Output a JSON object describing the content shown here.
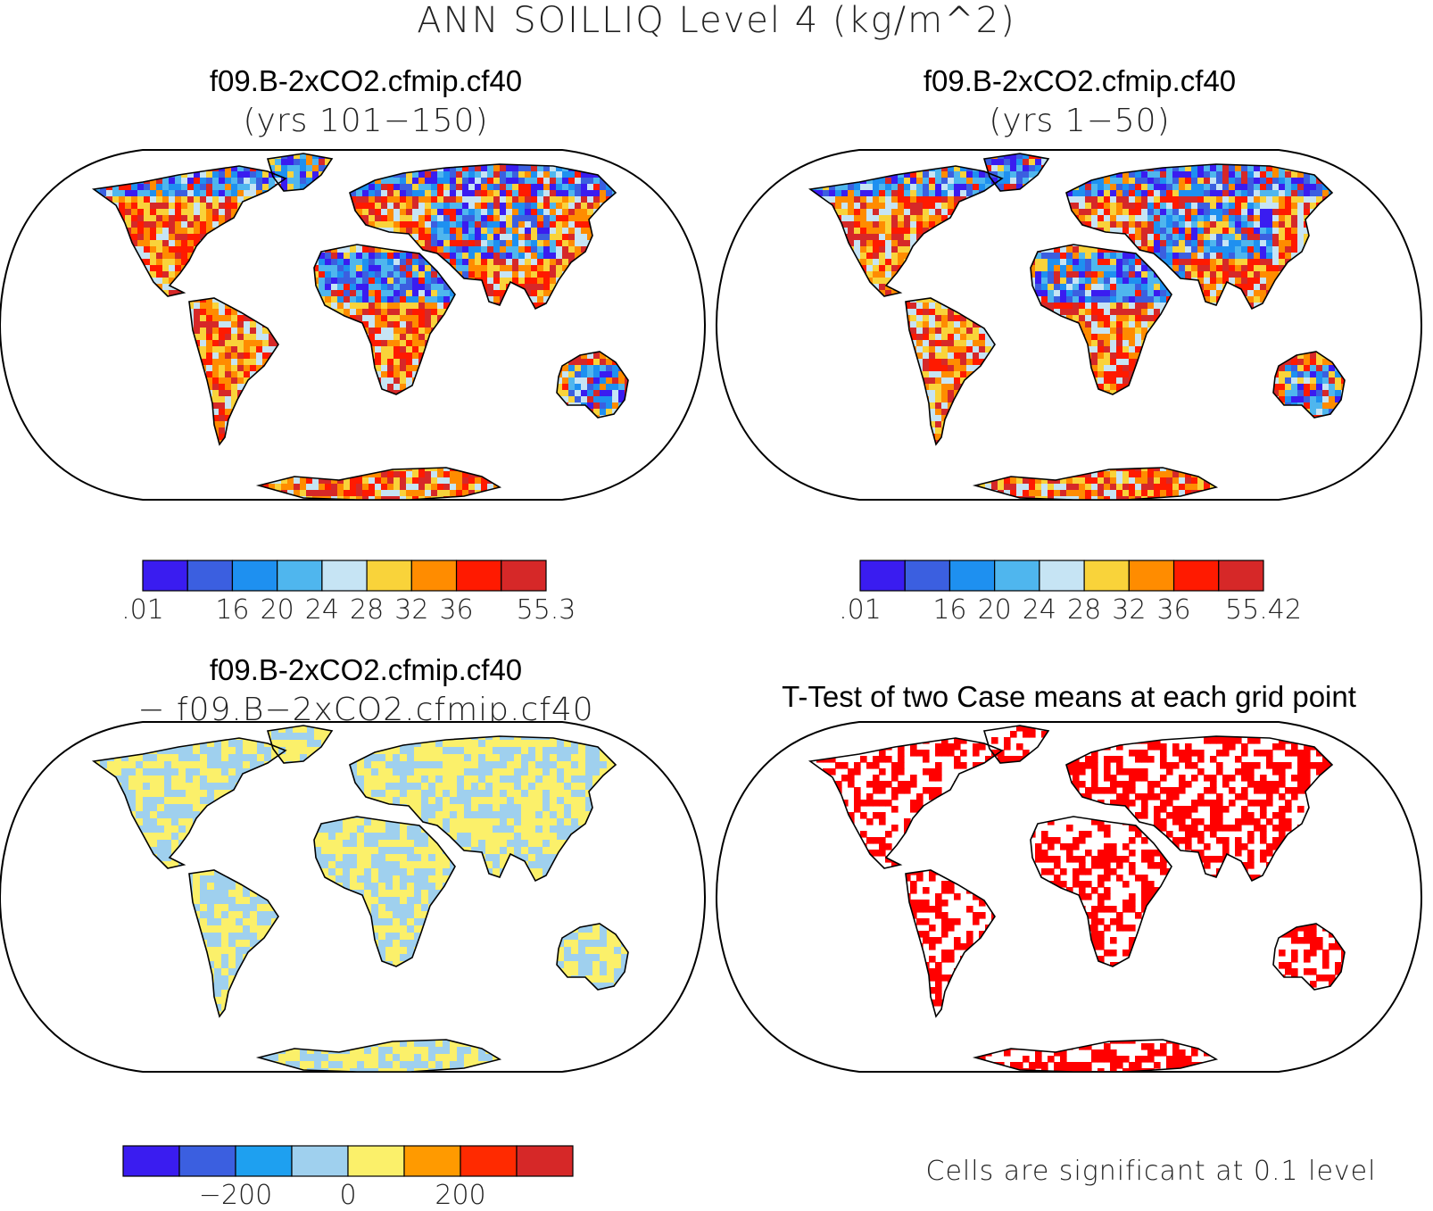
{
  "title": "ANN SOILLIQ Level 4 (kg/m^2)",
  "panels": [
    {
      "id": "case1",
      "title": "f09.B-2xCO2.cfmip.cf40",
      "subtitle": "(yrs 101−150)"
    },
    {
      "id": "case2",
      "title": "f09.B-2xCO2.cfmip.cf40",
      "subtitle": "(yrs 1−50)"
    },
    {
      "id": "diff",
      "title": "f09.B-2xCO2.cfmip.cf40",
      "subtitle": "− f09.B−2xCO2.cfmip.cf40"
    },
    {
      "id": "ttest",
      "title": "T-Test of two Case means at each grid point",
      "subtitle": ""
    }
  ],
  "colorbars": [
    {
      "id": "cb1",
      "colors": [
        "#3a1cf0",
        "#3b5fe0",
        "#1e90f0",
        "#4fb6ee",
        "#c6e4f4",
        "#f9d33a",
        "#ff8c00",
        "#ff1a00",
        "#d62828"
      ],
      "labels": [
        ".01",
        "16",
        "20",
        "24",
        "28",
        "32",
        "36",
        "55.3"
      ]
    },
    {
      "id": "cb2",
      "colors": [
        "#3a1cf0",
        "#3b5fe0",
        "#1e90f0",
        "#4fb6ee",
        "#c6e4f4",
        "#f9d33a",
        "#ff8c00",
        "#ff1a00",
        "#d62828"
      ],
      "labels": [
        ".01",
        "16",
        "20",
        "24",
        "28",
        "32",
        "36",
        "55.42"
      ]
    },
    {
      "id": "cb3",
      "colors": [
        "#3a1cf0",
        "#3b5fe0",
        "#1ea0f0",
        "#9fd0ee",
        "#fbf06a",
        "#ff9a00",
        "#ff2a00",
        "#d62828"
      ],
      "labels": [
        "−200",
        "0",
        "200"
      ]
    }
  ],
  "significance_note": "Cells are significant at 0.1 level",
  "map_colors": {
    "ocean": "#ffffff",
    "coast": "#000000",
    "significant": "#ff0000"
  }
}
